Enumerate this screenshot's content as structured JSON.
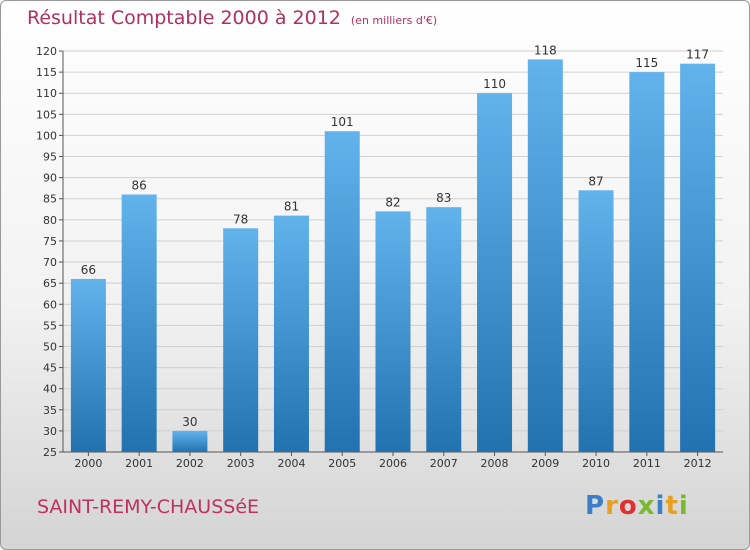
{
  "title": "Résultat Comptable 2000 à 2012",
  "subtitle": "(en milliers d'€)",
  "city": "SAINT-REMY-CHAUSSéE",
  "logo": {
    "letters": [
      "P",
      "r",
      "o",
      "x",
      "i",
      "t",
      "i"
    ],
    "colors": [
      "#3a7fc8",
      "#e8a020",
      "#e03030",
      "#7ab830",
      "#3a7fc8",
      "#e8a020",
      "#7ab830"
    ]
  },
  "colors": {
    "bar_top": "#62b3ec",
    "bar_bottom": "#2272b0",
    "grid": "#d0d0d0"
  },
  "chart_data": {
    "type": "bar",
    "title": "Résultat Comptable 2000 à 2012",
    "subtitle": "(en milliers d'€)",
    "categories": [
      "2000",
      "2001",
      "2002",
      "2003",
      "2004",
      "2005",
      "2006",
      "2007",
      "2008",
      "2009",
      "2010",
      "2011",
      "2012"
    ],
    "values": [
      66,
      86,
      30,
      78,
      81,
      101,
      82,
      83,
      110,
      118,
      87,
      115,
      117
    ],
    "xlabel": "",
    "ylabel": "",
    "ylim": [
      25,
      120
    ],
    "yticks": [
      25,
      30,
      35,
      40,
      45,
      50,
      55,
      60,
      65,
      70,
      75,
      80,
      85,
      90,
      95,
      100,
      105,
      110,
      115,
      120
    ],
    "grid": true,
    "legend": "none"
  }
}
